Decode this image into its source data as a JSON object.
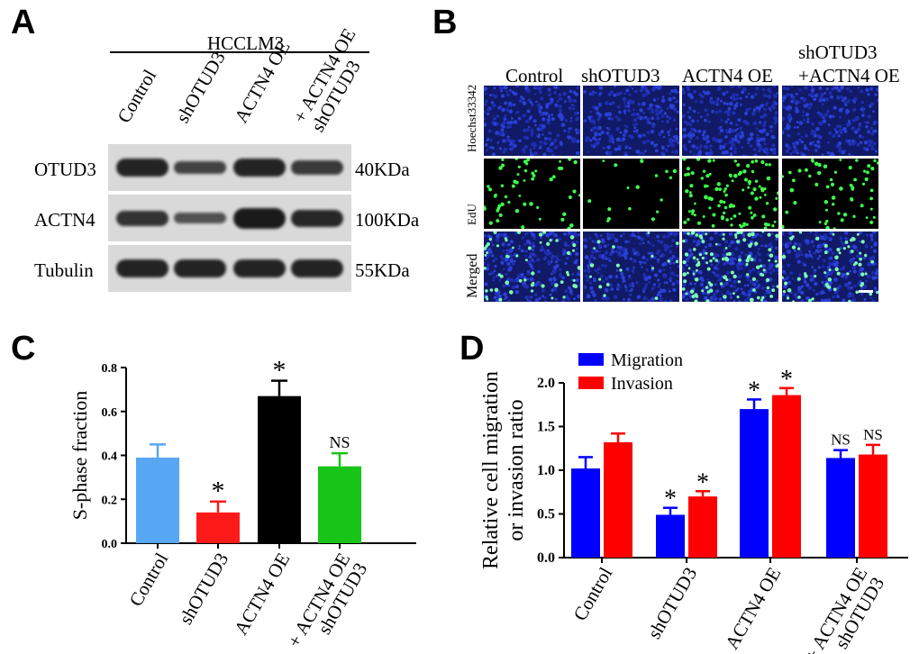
{
  "panels": {
    "A": "A",
    "B": "B",
    "C": "C",
    "D": "D"
  },
  "blot": {
    "cell_line": "HCCLM3",
    "lanes": [
      "Control",
      "shOTUD3",
      "ACTN4 OE",
      "shOTUD3\n+ ACTN4 OE"
    ],
    "rows": [
      {
        "protein": "OTUD3",
        "size": "40KDa",
        "intensity": [
          1.0,
          0.6,
          1.0,
          0.7
        ]
      },
      {
        "protein": "ACTN4",
        "size": "100KDa",
        "intensity": [
          0.8,
          0.4,
          1.2,
          0.95
        ]
      },
      {
        "protein": "Tubulin",
        "size": "55KDa",
        "intensity": [
          1.0,
          1.0,
          1.0,
          1.0
        ]
      }
    ]
  },
  "microscopy": {
    "columns": [
      "Control",
      "shOTUD3",
      "ACTN4 OE",
      "shOTUD3\n+ACTN4 OE"
    ],
    "rows": [
      "Hoechst33342",
      "EdU",
      "Merged"
    ]
  },
  "chart_data": [
    {
      "type": "bar",
      "panel": "C",
      "categories": [
        "Control",
        "shOTUD3",
        "ACTN4 OE",
        "shOTUD3\n+ ACTN4 OE"
      ],
      "values": [
        0.39,
        0.14,
        0.67,
        0.35
      ],
      "errors": [
        0.06,
        0.05,
        0.07,
        0.06
      ],
      "colors": [
        "#58a7f5",
        "#ff1a1a",
        "#000000",
        "#18c418"
      ],
      "annotations": [
        "",
        "*",
        "*",
        "NS"
      ],
      "ylabel": "S-phase fraction",
      "ylim": [
        0,
        0.8
      ],
      "yticks": [
        "0.0",
        "0.2",
        "0.4",
        "0.6",
        "0.8"
      ]
    },
    {
      "type": "bar",
      "panel": "D",
      "categories": [
        "Control",
        "shOTUD3",
        "ACTN4 OE",
        "shOTUD3\n+ ACTN4 OE"
      ],
      "series": [
        {
          "name": "Migration",
          "color": "#0000ff",
          "values": [
            1.02,
            0.49,
            1.7,
            1.14
          ],
          "errors": [
            0.13,
            0.08,
            0.11,
            0.09
          ],
          "annotations": [
            "",
            "*",
            "*",
            "NS"
          ]
        },
        {
          "name": "Invasion",
          "color": "#ff0000",
          "values": [
            1.32,
            0.7,
            1.86,
            1.18
          ],
          "errors": [
            0.1,
            0.06,
            0.08,
            0.11
          ],
          "annotations": [
            "",
            "*",
            "*",
            "NS"
          ]
        }
      ],
      "ylabel": "Relative cell migration\nor invasion ratio",
      "ylim": [
        0,
        2.0
      ],
      "yticks": [
        "0.0",
        "0.5",
        "1.0",
        "1.5",
        "2.0"
      ],
      "legend_position": "top-left"
    }
  ]
}
